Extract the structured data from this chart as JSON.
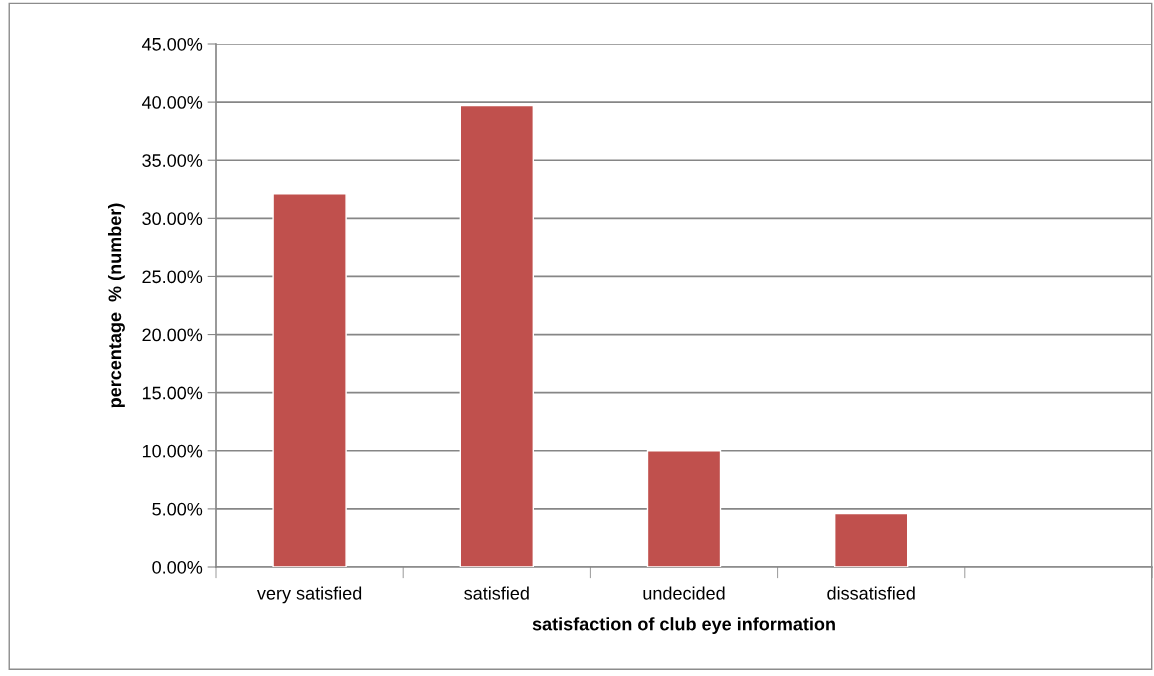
{
  "chart_data": {
    "type": "bar",
    "xlabel": "satisfaction of club eye information",
    "ylabel": "percentage  % (number)",
    "categories": [
      "very satisfied",
      "satisfied",
      "undecided",
      "dissatisfied",
      null
    ],
    "values": [
      32.1,
      39.7,
      10.0,
      4.6,
      null
    ],
    "color": "#c0504d",
    "ylim": [
      0,
      45
    ],
    "yticks": [
      {
        "value": 0,
        "label": "0.00%"
      },
      {
        "value": 5,
        "label": "5.00%"
      },
      {
        "value": 10,
        "label": "10.00%"
      },
      {
        "value": 15,
        "label": "15.00%"
      },
      {
        "value": 20,
        "label": "20.00%"
      },
      {
        "value": 25,
        "label": "25.00%"
      },
      {
        "value": 30,
        "label": "30.00%"
      },
      {
        "value": 35,
        "label": "35.00%"
      },
      {
        "value": 40,
        "label": "40.00%"
      },
      {
        "value": 45,
        "label": "45.00%"
      }
    ],
    "grid": "y"
  }
}
